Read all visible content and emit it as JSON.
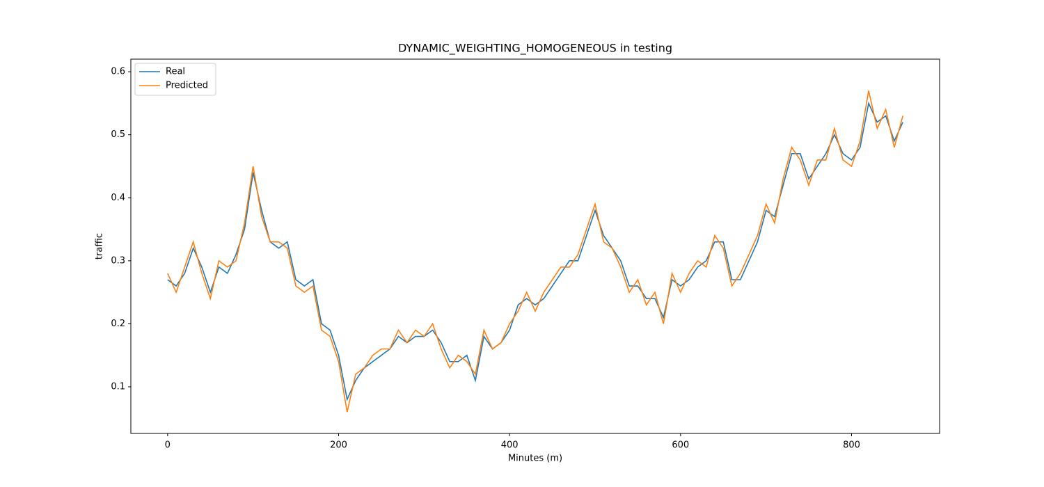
{
  "chart_data": {
    "type": "line",
    "title": "DYNAMIC_WEIGHTING_HOMOGENEOUS in testing",
    "x_label": "Minutes (m)",
    "y_label": "traffic",
    "x": [
      0,
      10,
      20,
      30,
      40,
      50,
      60,
      70,
      80,
      90,
      100,
      110,
      120,
      130,
      140,
      150,
      160,
      170,
      180,
      190,
      200,
      210,
      220,
      230,
      240,
      250,
      260,
      270,
      280,
      290,
      300,
      310,
      320,
      330,
      340,
      350,
      360,
      370,
      380,
      390,
      400,
      410,
      420,
      430,
      440,
      450,
      460,
      470,
      480,
      490,
      500,
      510,
      520,
      530,
      540,
      550,
      560,
      570,
      580,
      590,
      600,
      610,
      620,
      630,
      640,
      650,
      660,
      670,
      680,
      690,
      700,
      710,
      720,
      730,
      740,
      750,
      760,
      770,
      780,
      790,
      800,
      810,
      820,
      830,
      840,
      850,
      860
    ],
    "series": [
      {
        "name": "Real",
        "color": "#1f77b4",
        "values": [
          0.27,
          0.26,
          0.28,
          0.32,
          0.29,
          0.25,
          0.29,
          0.28,
          0.31,
          0.35,
          0.44,
          0.38,
          0.33,
          0.32,
          0.33,
          0.27,
          0.26,
          0.27,
          0.2,
          0.19,
          0.15,
          0.08,
          0.11,
          0.13,
          0.14,
          0.15,
          0.16,
          0.18,
          0.17,
          0.18,
          0.18,
          0.19,
          0.17,
          0.14,
          0.14,
          0.15,
          0.11,
          0.18,
          0.16,
          0.17,
          0.19,
          0.23,
          0.24,
          0.23,
          0.24,
          0.26,
          0.28,
          0.3,
          0.3,
          0.34,
          0.38,
          0.34,
          0.32,
          0.3,
          0.26,
          0.26,
          0.24,
          0.24,
          0.21,
          0.27,
          0.26,
          0.27,
          0.29,
          0.3,
          0.33,
          0.33,
          0.27,
          0.27,
          0.3,
          0.33,
          0.38,
          0.37,
          0.42,
          0.47,
          0.47,
          0.43,
          0.45,
          0.47,
          0.5,
          0.47,
          0.46,
          0.48,
          0.55,
          0.52,
          0.53,
          0.49,
          0.52
        ]
      },
      {
        "name": "Predicted",
        "color": "#ff7f0e",
        "values": [
          0.28,
          0.25,
          0.29,
          0.33,
          0.28,
          0.24,
          0.3,
          0.29,
          0.3,
          0.36,
          0.45,
          0.37,
          0.33,
          0.33,
          0.32,
          0.26,
          0.25,
          0.26,
          0.19,
          0.18,
          0.14,
          0.06,
          0.12,
          0.13,
          0.15,
          0.16,
          0.16,
          0.19,
          0.17,
          0.19,
          0.18,
          0.2,
          0.16,
          0.13,
          0.15,
          0.14,
          0.12,
          0.19,
          0.16,
          0.17,
          0.2,
          0.22,
          0.25,
          0.22,
          0.25,
          0.27,
          0.29,
          0.29,
          0.31,
          0.35,
          0.39,
          0.33,
          0.32,
          0.29,
          0.25,
          0.27,
          0.23,
          0.25,
          0.2,
          0.28,
          0.25,
          0.28,
          0.3,
          0.29,
          0.34,
          0.32,
          0.26,
          0.28,
          0.31,
          0.34,
          0.39,
          0.36,
          0.43,
          0.48,
          0.46,
          0.42,
          0.46,
          0.46,
          0.51,
          0.46,
          0.45,
          0.49,
          0.57,
          0.51,
          0.54,
          0.48,
          0.53
        ]
      }
    ],
    "xlim": [
      -43,
      903
    ],
    "ylim": [
      0.026,
      0.62
    ],
    "xticks": [
      0,
      200,
      400,
      600,
      800
    ],
    "yticks": [
      0.1,
      0.2,
      0.3,
      0.4,
      0.5,
      0.6
    ],
    "legend": "upper left"
  }
}
